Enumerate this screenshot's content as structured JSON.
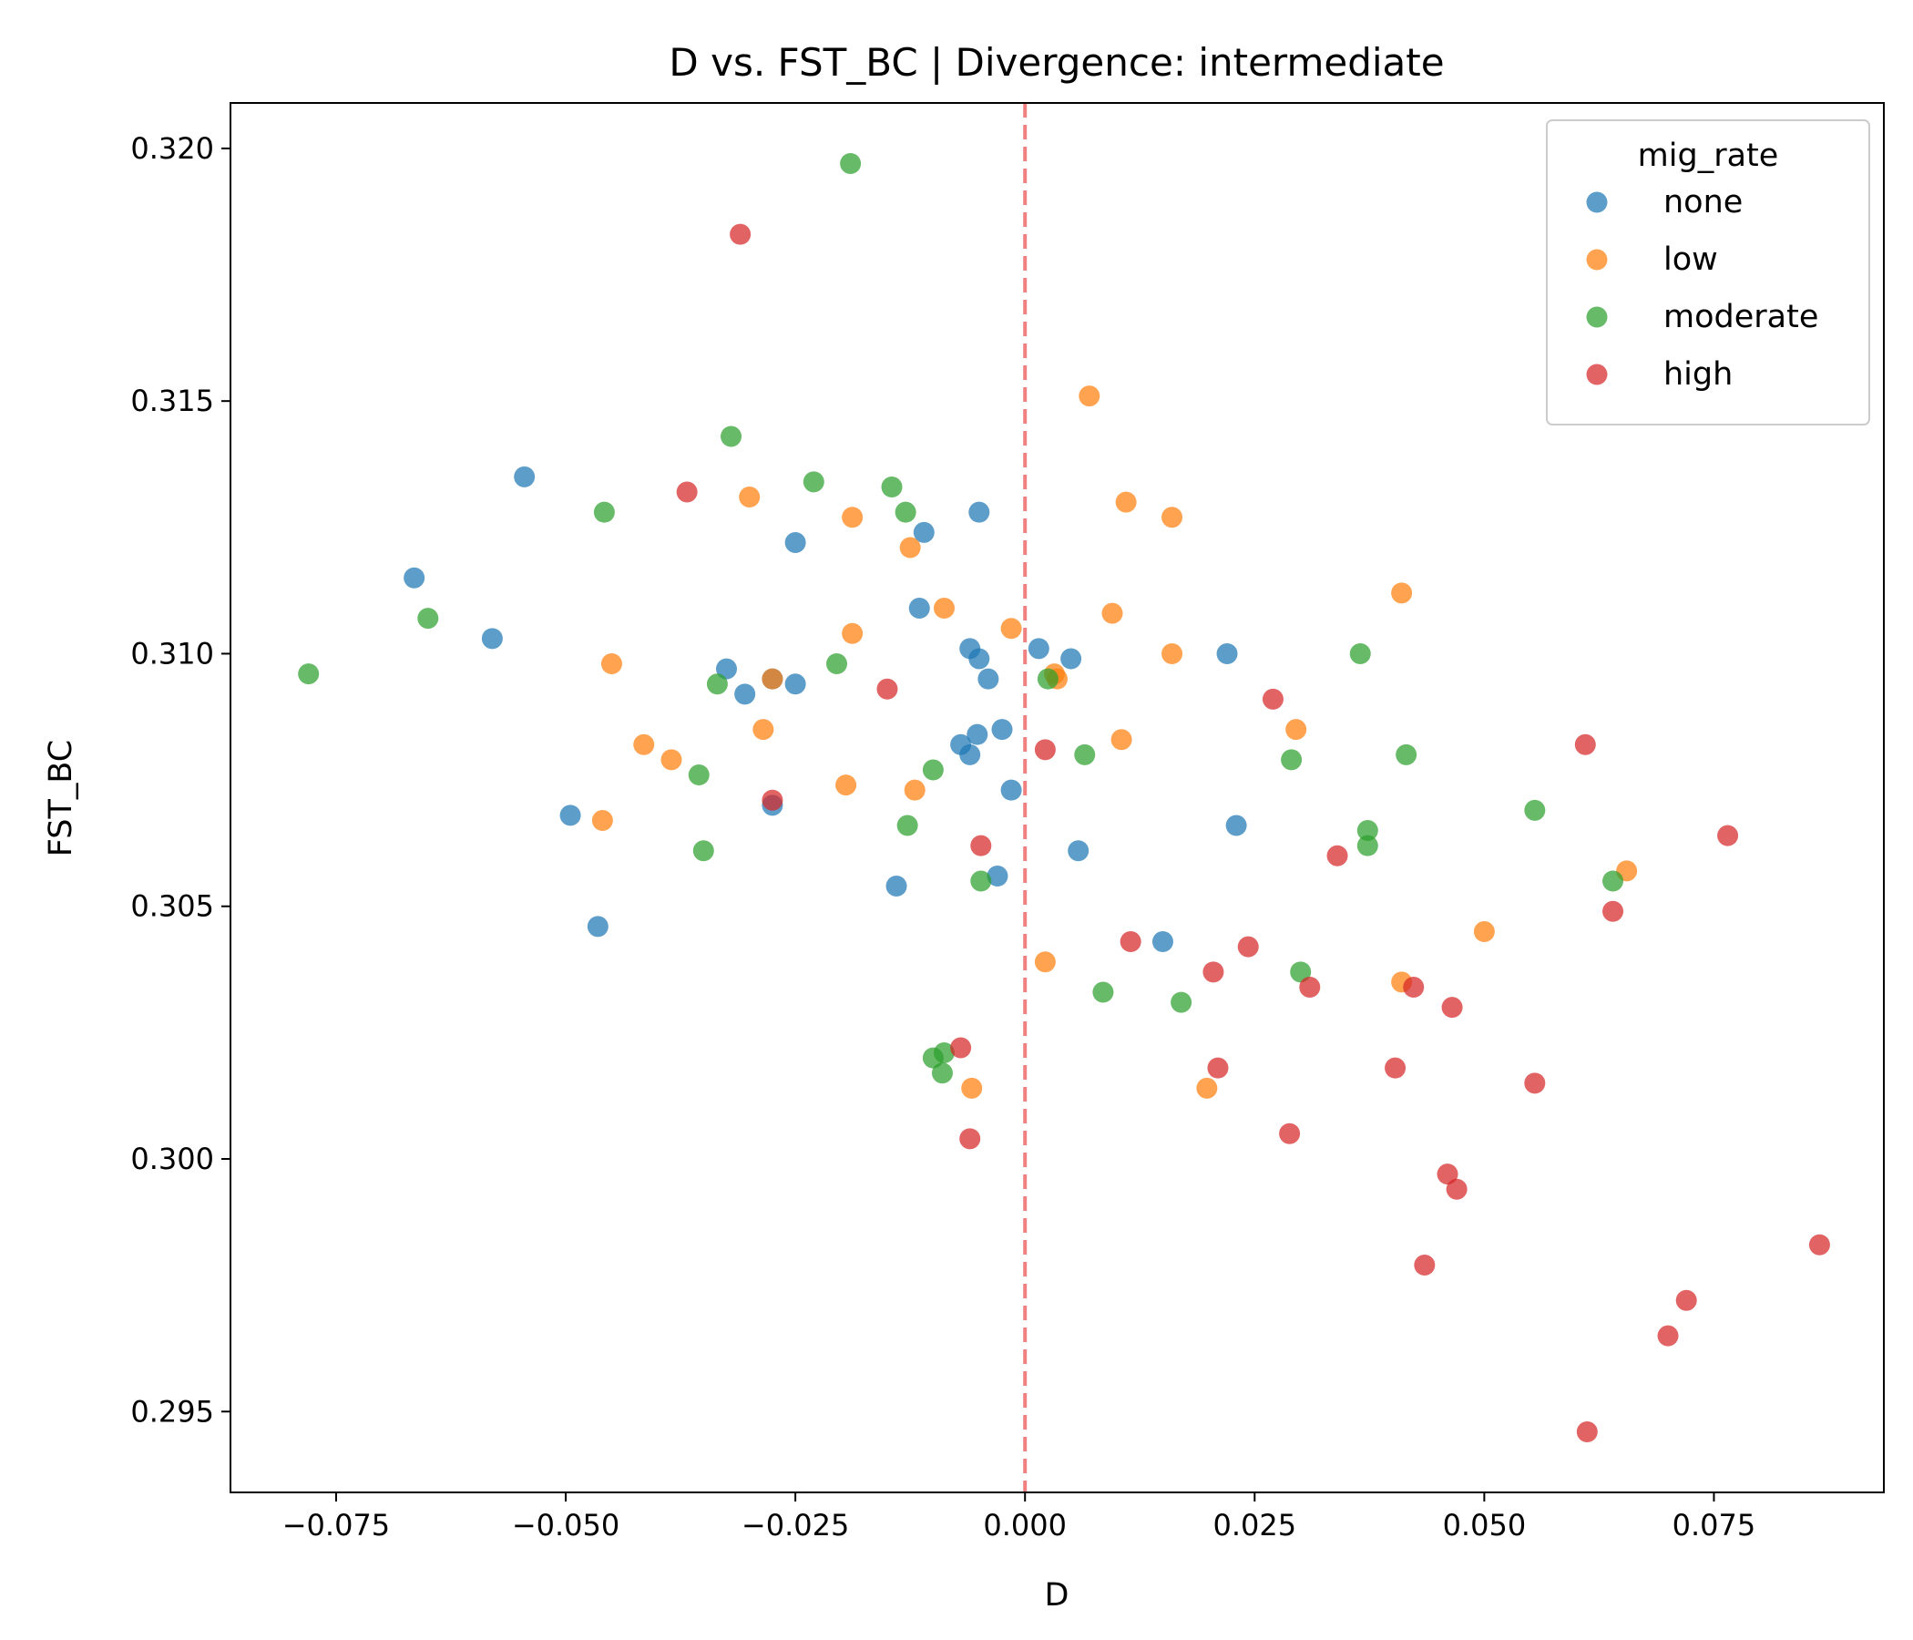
{
  "chart_data": {
    "type": "scatter",
    "title": "D vs. FST_BC | Divergence: intermediate",
    "xlabel": "D",
    "ylabel": "FST_BC",
    "xlim": [
      -0.0865,
      0.0935
    ],
    "ylim": [
      0.2934,
      0.3209
    ],
    "xticks": [
      -0.075,
      -0.05,
      -0.025,
      0.0,
      0.025,
      0.05,
      0.075
    ],
    "xtick_labels": [
      "−0.075",
      "−0.050",
      "−0.025",
      "0.000",
      "0.025",
      "0.050",
      "0.075"
    ],
    "yticks": [
      0.295,
      0.3,
      0.305,
      0.31,
      0.315,
      0.32
    ],
    "ytick_labels": [
      "0.295",
      "0.300",
      "0.305",
      "0.310",
      "0.315",
      "0.320"
    ],
    "grid": false,
    "reference_line": {
      "axis": "x",
      "value": 0.0,
      "style": "dashed",
      "color": "#f08080"
    },
    "legend": {
      "title": "mig_rate",
      "placement": "top-right"
    },
    "series": [
      {
        "name": "none",
        "color": "#1f77b4",
        "points": [
          [
            -0.0665,
            0.3115
          ],
          [
            -0.0545,
            0.3135
          ],
          [
            -0.058,
            0.3103
          ],
          [
            -0.0495,
            0.3068
          ],
          [
            -0.0465,
            0.3046
          ],
          [
            -0.0325,
            0.3097
          ],
          [
            -0.0305,
            0.3092
          ],
          [
            -0.0275,
            0.3095
          ],
          [
            -0.0275,
            0.307
          ],
          [
            -0.025,
            0.3122
          ],
          [
            -0.025,
            0.3094
          ],
          [
            -0.014,
            0.3054
          ],
          [
            -0.0115,
            0.3109
          ],
          [
            -0.011,
            0.3124
          ],
          [
            -0.007,
            0.3082
          ],
          [
            -0.006,
            0.3101
          ],
          [
            -0.006,
            0.308
          ],
          [
            -0.005,
            0.3128
          ],
          [
            -0.005,
            0.3099
          ],
          [
            -0.0052,
            0.3084
          ],
          [
            -0.004,
            0.3095
          ],
          [
            -0.003,
            0.3056
          ],
          [
            -0.0025,
            0.3085
          ],
          [
            -0.0015,
            0.3073
          ],
          [
            0.0015,
            0.3101
          ],
          [
            0.005,
            0.3099
          ],
          [
            0.0058,
            0.3061
          ],
          [
            0.015,
            0.3043
          ],
          [
            0.022,
            0.31
          ],
          [
            0.023,
            0.3066
          ]
        ]
      },
      {
        "name": "low",
        "color": "#ff7f0e",
        "points": [
          [
            -0.045,
            0.3098
          ],
          [
            -0.046,
            0.3067
          ],
          [
            -0.0415,
            0.3082
          ],
          [
            -0.0385,
            0.3079
          ],
          [
            -0.03,
            0.3131
          ],
          [
            -0.0285,
            0.3085
          ],
          [
            -0.0275,
            0.3095
          ],
          [
            -0.0195,
            0.3074
          ],
          [
            -0.0188,
            0.3127
          ],
          [
            -0.0188,
            0.3104
          ],
          [
            -0.0125,
            0.3121
          ],
          [
            -0.012,
            0.3073
          ],
          [
            -0.0088,
            0.3109
          ],
          [
            -0.0058,
            0.3014
          ],
          [
            -0.0015,
            0.3105
          ],
          [
            0.0022,
            0.3039
          ],
          [
            0.0032,
            0.3096
          ],
          [
            0.0035,
            0.3095
          ],
          [
            0.007,
            0.3151
          ],
          [
            0.0095,
            0.3108
          ],
          [
            0.0105,
            0.3083
          ],
          [
            0.011,
            0.313
          ],
          [
            0.016,
            0.3127
          ],
          [
            0.016,
            0.31
          ],
          [
            0.0198,
            0.3014
          ],
          [
            0.0295,
            0.3085
          ],
          [
            0.041,
            0.3112
          ],
          [
            0.041,
            0.3035
          ],
          [
            0.05,
            0.3045
          ],
          [
            0.0655,
            0.3057
          ]
        ]
      },
      {
        "name": "moderate",
        "color": "#2ca02c",
        "points": [
          [
            -0.078,
            0.3096
          ],
          [
            -0.065,
            0.3107
          ],
          [
            -0.0458,
            0.3128
          ],
          [
            -0.0355,
            0.3076
          ],
          [
            -0.035,
            0.3061
          ],
          [
            -0.0335,
            0.3094
          ],
          [
            -0.032,
            0.3143
          ],
          [
            -0.023,
            0.3134
          ],
          [
            -0.0205,
            0.3098
          ],
          [
            -0.019,
            0.3197
          ],
          [
            -0.0145,
            0.3133
          ],
          [
            -0.013,
            0.3128
          ],
          [
            -0.0128,
            0.3066
          ],
          [
            -0.01,
            0.3077
          ],
          [
            -0.01,
            0.302
          ],
          [
            -0.0088,
            0.3021
          ],
          [
            -0.009,
            0.3017
          ],
          [
            -0.0048,
            0.3055
          ],
          [
            0.0025,
            0.3095
          ],
          [
            0.0065,
            0.308
          ],
          [
            0.0085,
            0.3033
          ],
          [
            0.017,
            0.3031
          ],
          [
            0.029,
            0.3079
          ],
          [
            0.03,
            0.3037
          ],
          [
            0.0365,
            0.31
          ],
          [
            0.0373,
            0.3065
          ],
          [
            0.0373,
            0.3062
          ],
          [
            0.0415,
            0.308
          ],
          [
            0.0555,
            0.3069
          ],
          [
            0.064,
            0.3055
          ]
        ]
      },
      {
        "name": "high",
        "color": "#d62728",
        "points": [
          [
            -0.031,
            0.3183
          ],
          [
            -0.0368,
            0.3132
          ],
          [
            -0.0275,
            0.3071
          ],
          [
            -0.015,
            0.3093
          ],
          [
            -0.007,
            0.3022
          ],
          [
            -0.006,
            0.3004
          ],
          [
            -0.0048,
            0.3062
          ],
          [
            0.0022,
            0.3081
          ],
          [
            0.0115,
            0.3043
          ],
          [
            0.0205,
            0.3037
          ],
          [
            0.021,
            0.3018
          ],
          [
            0.0243,
            0.3042
          ],
          [
            0.027,
            0.3091
          ],
          [
            0.0288,
            0.3005
          ],
          [
            0.031,
            0.3034
          ],
          [
            0.034,
            0.306
          ],
          [
            0.0403,
            0.3018
          ],
          [
            0.0423,
            0.3034
          ],
          [
            0.0435,
            0.2979
          ],
          [
            0.046,
            0.2997
          ],
          [
            0.0465,
            0.303
          ],
          [
            0.047,
            0.2994
          ],
          [
            0.0555,
            0.3015
          ],
          [
            0.061,
            0.3082
          ],
          [
            0.0612,
            0.2946
          ],
          [
            0.064,
            0.3049
          ],
          [
            0.07,
            0.2965
          ],
          [
            0.072,
            0.2972
          ],
          [
            0.0765,
            0.3064
          ],
          [
            0.0865,
            0.2983
          ]
        ]
      }
    ]
  }
}
